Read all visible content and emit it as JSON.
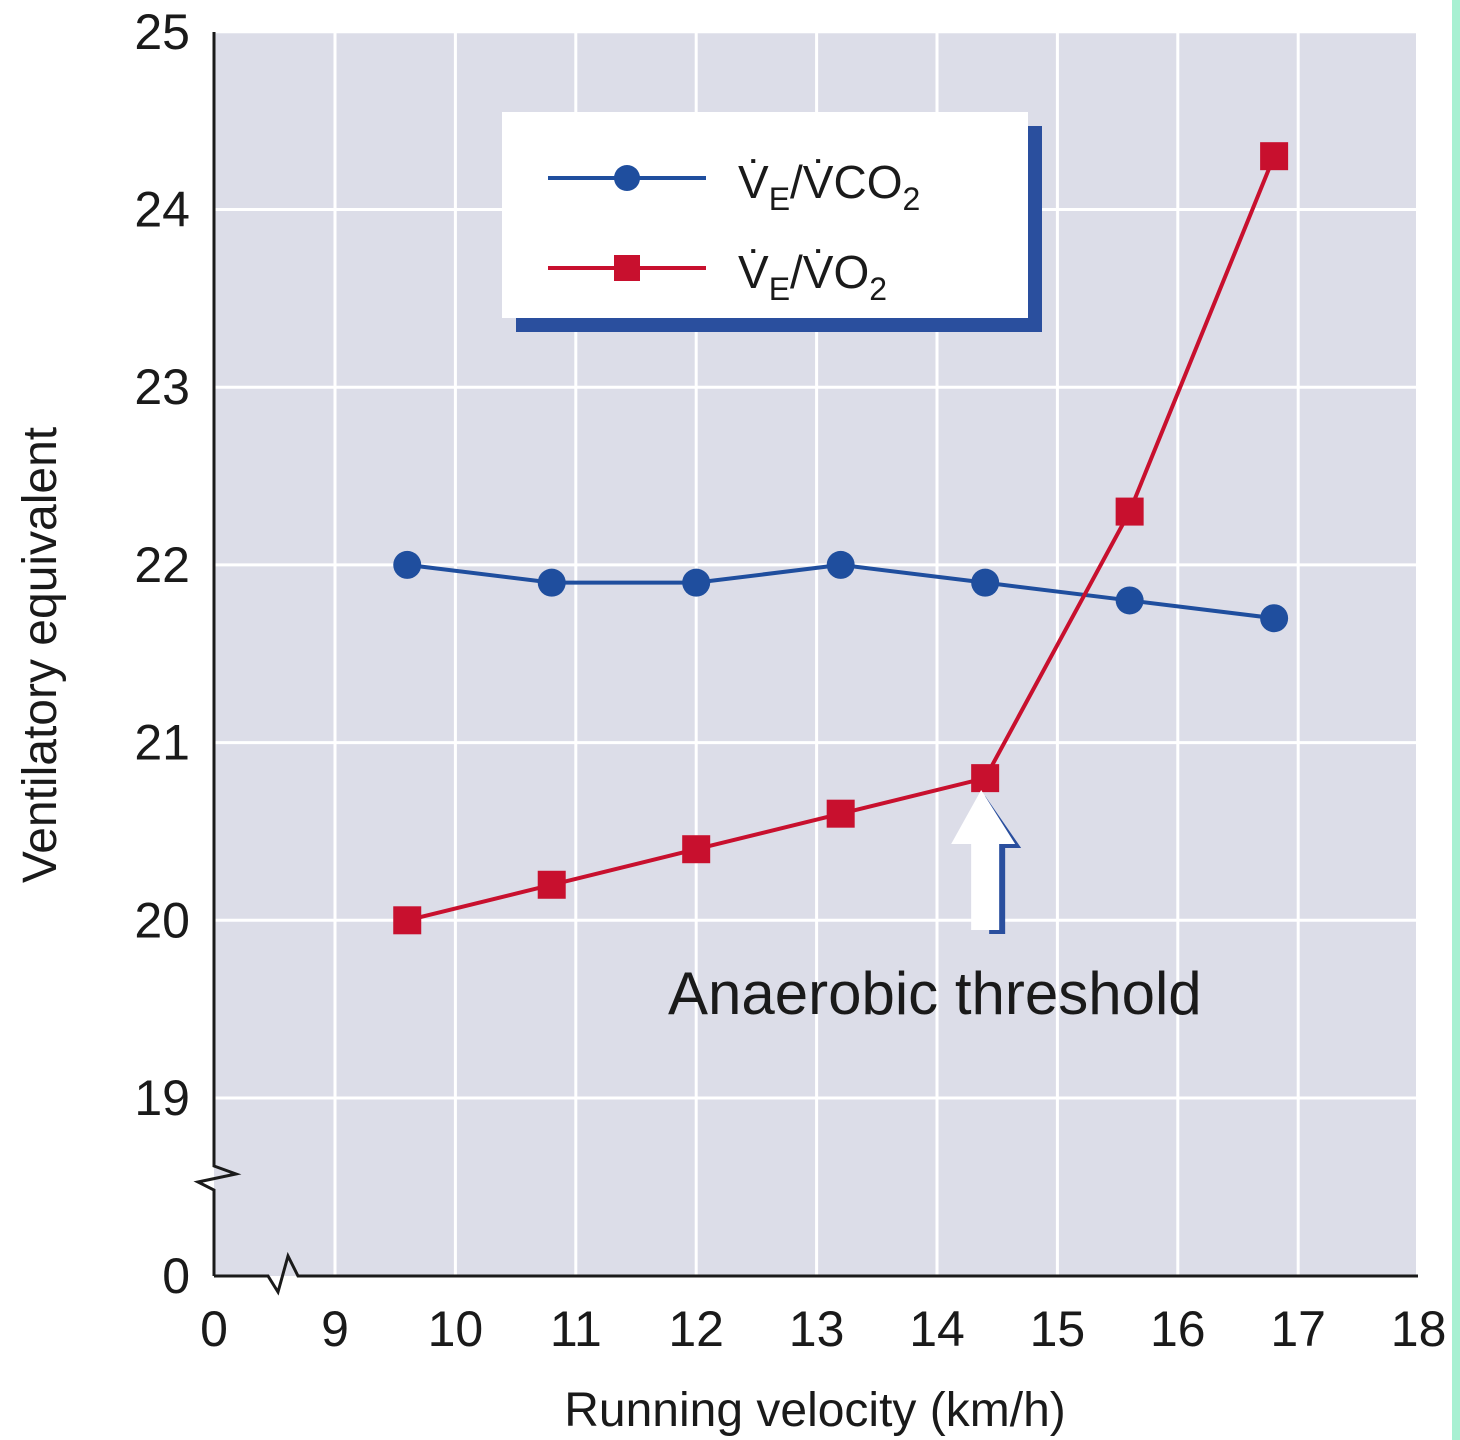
{
  "chart_data": {
    "type": "line",
    "xlabel": "Running velocity (km/h)",
    "ylabel": "Ventilatory equivalent",
    "xlim": [
      0,
      18
    ],
    "ylim": [
      0,
      25
    ],
    "x_axis_break": true,
    "y_axis_break": true,
    "x_ticks": [
      "0",
      "9",
      "10",
      "11",
      "12",
      "13",
      "14",
      "15",
      "16",
      "17",
      "18"
    ],
    "y_ticks": [
      "0",
      "19",
      "20",
      "21",
      "22",
      "23",
      "24",
      "25"
    ],
    "grid": true,
    "legend_position": "top",
    "series": [
      {
        "name": "V̇E/V̇CO2",
        "color": "#1f4e9e",
        "marker": "circle",
        "x": [
          9.6,
          10.8,
          12.0,
          13.2,
          14.4,
          15.6,
          16.8
        ],
        "y": [
          22.0,
          21.9,
          21.9,
          22.0,
          21.9,
          21.8,
          21.7
        ]
      },
      {
        "name": "V̇E/V̇O2",
        "color": "#c8102e",
        "marker": "square",
        "x": [
          9.6,
          10.8,
          12.0,
          13.2,
          14.4,
          15.6,
          16.8
        ],
        "y": [
          20.0,
          20.2,
          20.4,
          20.6,
          20.8,
          22.3,
          24.3
        ]
      }
    ],
    "annotation": {
      "text": "Anaerobic threshold",
      "arrow_x": 14.4
    }
  },
  "legend": {
    "items": [
      {
        "main_pre": "V̇",
        "sub": "E",
        "main_mid": "/V̇CO",
        "sub2": "2"
      },
      {
        "main_pre": "V̇",
        "sub": "E",
        "main_mid": "/V̇O",
        "sub2": "2"
      }
    ]
  },
  "colors": {
    "plot_background": "#dcdde8",
    "grid": "#ffffff",
    "legend_border": "#2a4f9e"
  }
}
